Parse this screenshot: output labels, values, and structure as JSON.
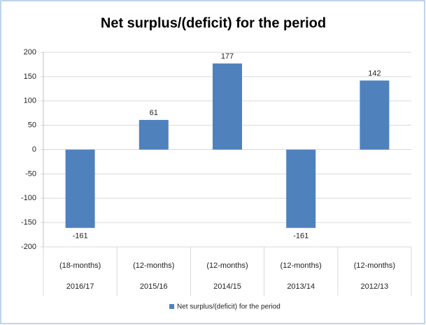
{
  "chart_data": {
    "type": "bar",
    "title": "Net surplus/(deficit) for the period",
    "categories": [
      "2016/17",
      "2015/16",
      "2014/15",
      "2013/14",
      "2012/13"
    ],
    "sublabels": [
      "(18-months)",
      "(12-months)",
      "(12-months)",
      "(12-months)",
      "(12-months)"
    ],
    "series": [
      {
        "name": "Net surplus/(deficit) for the period",
        "color": "#4f81bd",
        "values": [
          -161,
          61,
          177,
          -161,
          142
        ]
      }
    ],
    "ylim": [
      -200,
      200
    ],
    "yticks": [
      -200,
      -150,
      -100,
      -50,
      0,
      50,
      100,
      150,
      200
    ],
    "grid": true,
    "legend": "bottom"
  }
}
